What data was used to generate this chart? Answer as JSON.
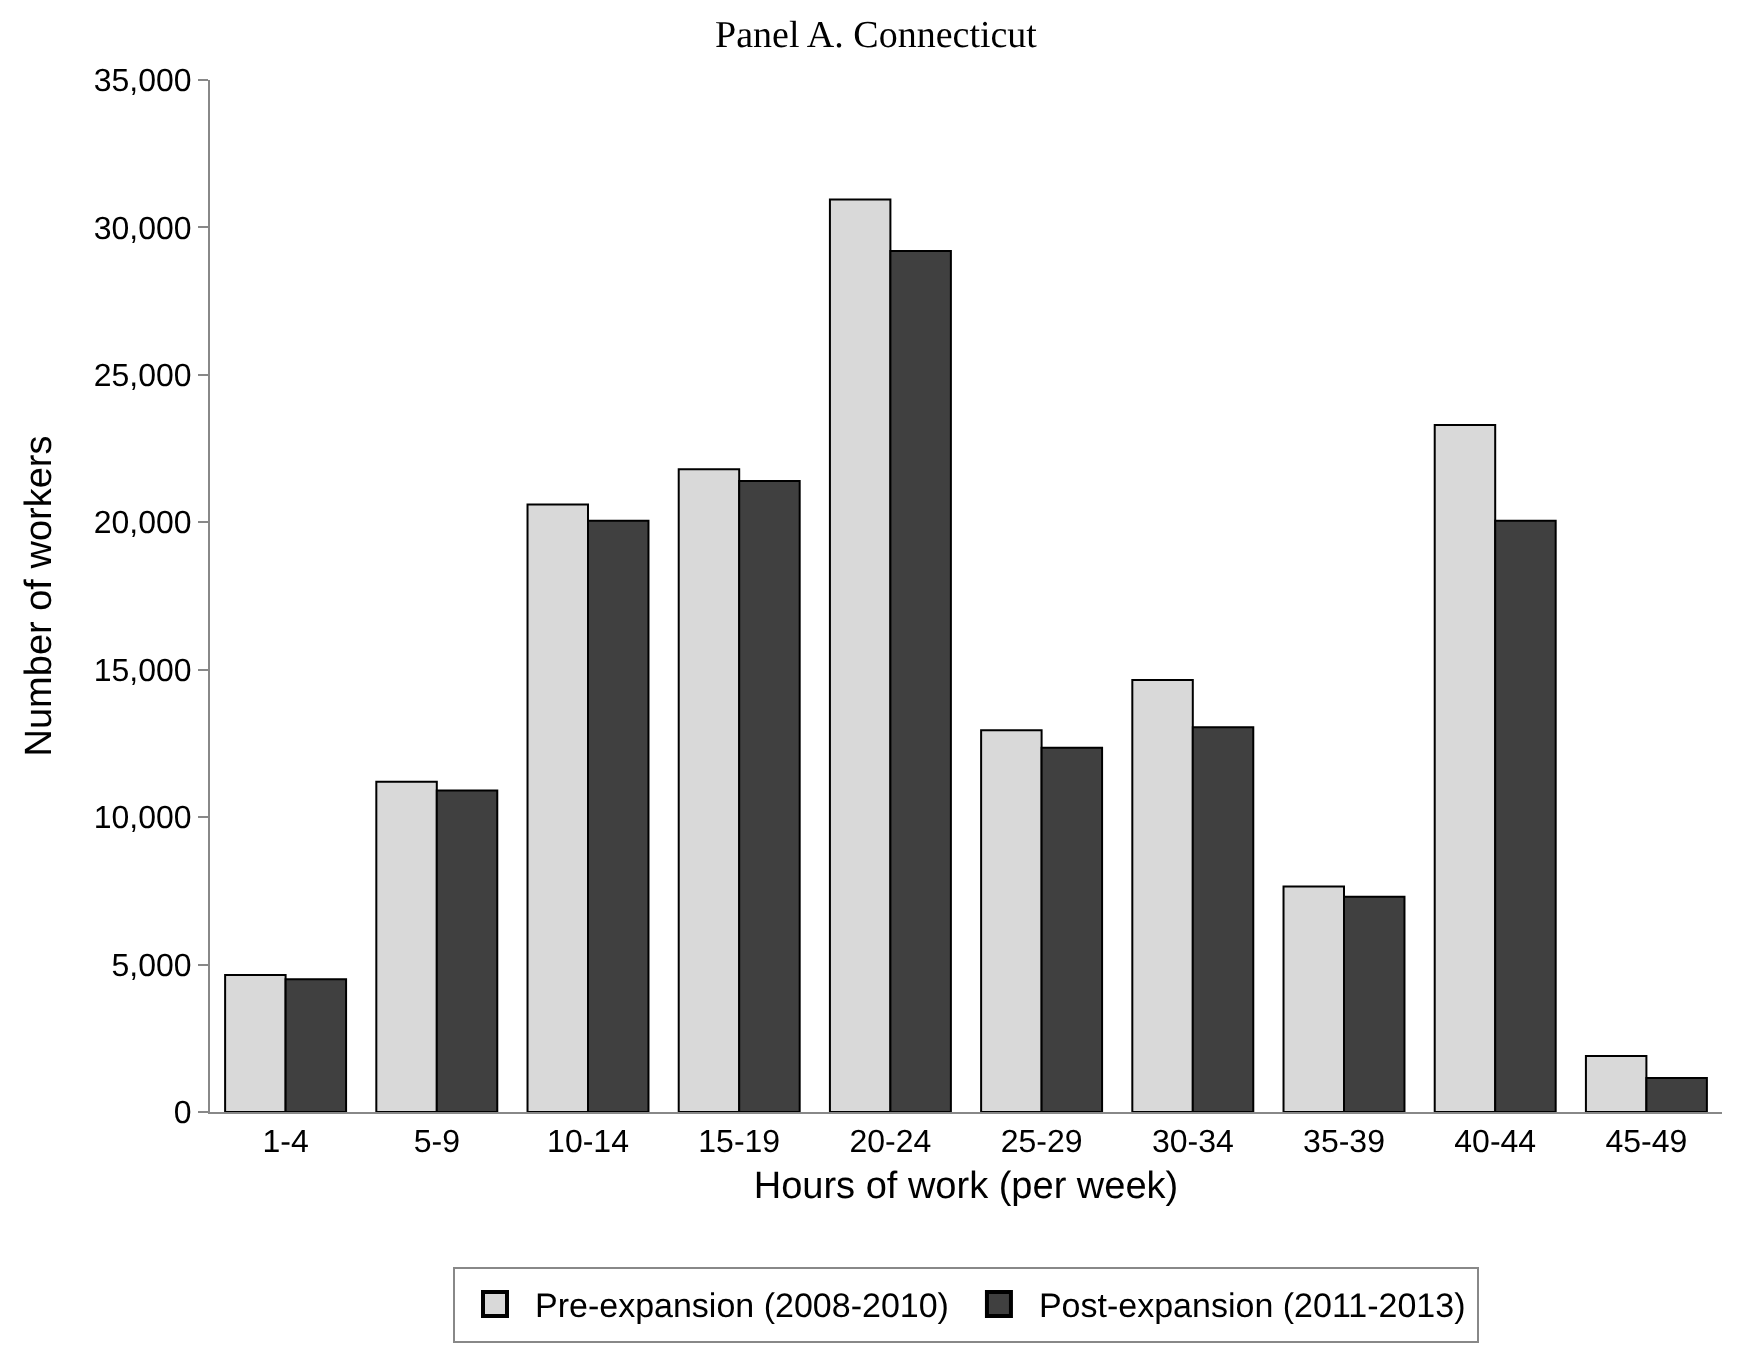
{
  "chart_data": {
    "type": "bar",
    "title": "Panel A. Connecticut",
    "xlabel": "Hours of work (per week)",
    "ylabel": "Number of workers",
    "categories": [
      "1-4",
      "5-9",
      "10-14",
      "15-19",
      "20-24",
      "25-29",
      "30-34",
      "35-39",
      "40-44",
      "45-49"
    ],
    "series": [
      {
        "name": "Pre-expansion (2008-2010)",
        "color": "#d9d9d9",
        "values": [
          4650,
          11200,
          20600,
          21800,
          30950,
          12950,
          14650,
          7650,
          23300,
          1900
        ]
      },
      {
        "name": "Post-expansion (2011-2013)",
        "color": "#404040",
        "values": [
          4500,
          10900,
          20050,
          21400,
          29200,
          12350,
          13050,
          7300,
          20050,
          1150
        ]
      }
    ],
    "ylim": [
      0,
      35000
    ],
    "yticks": [
      {
        "value": 0,
        "label": "0"
      },
      {
        "value": 5000,
        "label": "5,000"
      },
      {
        "value": 10000,
        "label": "10,000"
      },
      {
        "value": 15000,
        "label": "15,000"
      },
      {
        "value": 20000,
        "label": "20,000"
      },
      {
        "value": 25000,
        "label": "25,000"
      },
      {
        "value": 30000,
        "label": "30,000"
      },
      {
        "value": 35000,
        "label": "35,000"
      }
    ],
    "grid": false,
    "legend": "bottom"
  }
}
